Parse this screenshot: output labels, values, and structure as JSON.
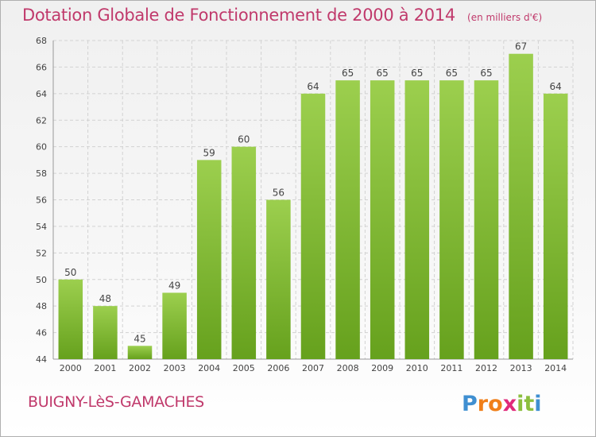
{
  "chart_data": {
    "type": "bar",
    "title": "Dotation Globale de Fonctionnement de 2000 à 2014",
    "subtitle": "(en milliers d'€)",
    "categories": [
      "2000",
      "2001",
      "2002",
      "2003",
      "2004",
      "2005",
      "2006",
      "2007",
      "2008",
      "2009",
      "2010",
      "2011",
      "2012",
      "2013",
      "2014"
    ],
    "values": [
      50,
      48,
      45,
      49,
      59,
      60,
      56,
      64,
      65,
      65,
      65,
      65,
      65,
      67,
      64
    ],
    "xlabel": "",
    "ylabel": "",
    "ylim": [
      44,
      68
    ],
    "yticks": [
      44,
      46,
      48,
      50,
      52,
      54,
      56,
      58,
      60,
      62,
      64,
      66,
      68
    ],
    "grid": true,
    "legend": "none",
    "bar_color_top": "#9ccf4e",
    "bar_color_bottom": "#66a11d"
  },
  "footer": {
    "commune": "BUIGNY-LèS-GAMACHES",
    "logo_text": "Proxiti",
    "logo_letters": [
      "P",
      "r",
      "o",
      "x",
      "i",
      "t",
      "i"
    ],
    "logo_colors": [
      "#3f8fd1",
      "#f07f1a",
      "#f07f1a",
      "#e02a7a",
      "#8cbf3f",
      "#8cbf3f",
      "#3f8fd1"
    ]
  }
}
